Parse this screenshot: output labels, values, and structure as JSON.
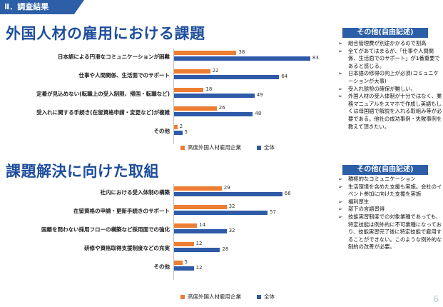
{
  "header": {
    "section": "Ⅱ．調査結果"
  },
  "colors": {
    "series0": "#ed7d31",
    "series1": "#2e5aa8",
    "accent": "#2d5fa8"
  },
  "sections": [
    {
      "title": "外国人材の雇用における課題",
      "other_title": "その他(自由記述)",
      "other_items": [
        "組合管理費が別途かかるので割高",
        "全てがあてはまるが、「仕事や人間関係、生活面でのサポート」が1番重要であると感じる。",
        "日本語の修得の向上が必須(コミュニケーションが大事)",
        "受入れ態勢の確保が難しい。",
        "外国人材の受入体制が十分ではなく、業務マニュアルをスマホで作成し英語もしくは母国語で解説を入れる取組み等が必要である。他社の成功事例・失敗事例を教えて頂きたい。"
      ]
    },
    {
      "title": "課題解決に向けた取組",
      "other_title": "その他(自由記述)",
      "other_items": [
        "積極的なコミュニケーション",
        "生活環境を含めた支援も実施。会社のイベント参加に向けた支援を実施",
        "福利厚生",
        "部下の言語習得",
        "技能実習制度での対象業種であっても、特定技能は例外的に不可業種になっており、技能実習完了後に特定技能で雇用することができない。このような例外的な制約の改善が必要。"
      ]
    }
  ],
  "chart_data": [
    {
      "type": "bar",
      "orientation": "horizontal",
      "categories": [
        "日本語による円滑なコミュニケーションが困難",
        "仕事や人間関係、生活面でのサポート",
        "定着が見込めない(転職上の受入制限、帰国・転職など)",
        "受入れに関する手続き(在留資格申請・変更など)が複雑",
        "その他"
      ],
      "series": [
        {
          "name": "高度外国人材雇用企業",
          "values": [
            38,
            22,
            18,
            26,
            2
          ]
        },
        {
          "name": "全体",
          "values": [
            83,
            64,
            49,
            48,
            5
          ]
        }
      ],
      "legend": "bottom"
    },
    {
      "type": "bar",
      "orientation": "horizontal",
      "categories": [
        "社内における受入体制の構築",
        "在留資格の申請・更新手続きのサポート",
        "国籍を問わない採用フローの構築など採用面での強化",
        "研修や資格取得支援制度などの充実",
        "その他"
      ],
      "series": [
        {
          "name": "高度外国人材雇用企業",
          "values": [
            29,
            32,
            14,
            12,
            5
          ]
        },
        {
          "name": "全体",
          "values": [
            66,
            57,
            32,
            28,
            12
          ]
        }
      ],
      "legend": "bottom"
    }
  ],
  "page_number": "6"
}
